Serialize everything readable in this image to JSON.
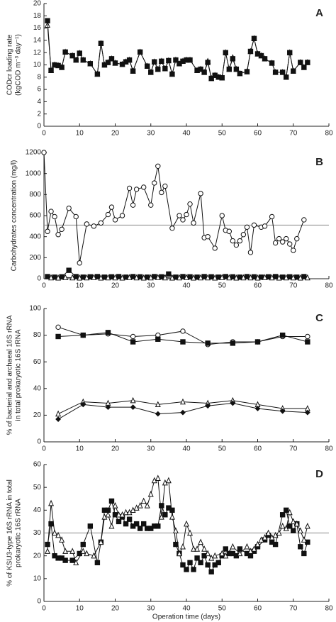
{
  "chart_data": [
    {
      "type": "line",
      "panel_label": "A",
      "ylabel": [
        "CODcr loading rate",
        "(kgCOD m⁻³ day⁻¹)"
      ],
      "xlim": [
        0,
        80
      ],
      "xticks": [
        0,
        10,
        20,
        30,
        40,
        50,
        60,
        70,
        80
      ],
      "ylim": [
        0,
        20
      ],
      "yticks": [
        0,
        2,
        4,
        6,
        8,
        10,
        12,
        14,
        16,
        18,
        20
      ],
      "series": [
        {
          "color": "#111",
          "marker": "triangle",
          "filled": false,
          "x": [
            1,
            2,
            3,
            4,
            5,
            6,
            8,
            9,
            10,
            11,
            13,
            15,
            16,
            17,
            18,
            19,
            20,
            22,
            23,
            24,
            25,
            27,
            29,
            30,
            31,
            32,
            33,
            34,
            35,
            36,
            37,
            38,
            39,
            40,
            41,
            43,
            44,
            45,
            46,
            47,
            48,
            49,
            50,
            51,
            52,
            53,
            54,
            55,
            57,
            58,
            59,
            60,
            61,
            62,
            64,
            65,
            67,
            68,
            69,
            70,
            72,
            73,
            74
          ],
          "values": [
            16.5,
            9.1,
            10,
            9.9,
            9.6,
            12.1,
            11.5,
            10.8,
            11.9,
            10.8,
            10.2,
            8.5,
            13.5,
            10,
            10.4,
            11,
            10.3,
            10.1,
            10.5,
            10.8,
            9,
            12.1,
            9.8,
            8.8,
            10.5,
            9.3,
            10.6,
            9.4,
            10.7,
            8.5,
            10.8,
            10.2,
            10.6,
            10.8,
            10.8,
            9.1,
            9.3,
            8.8,
            10.6,
            7.8,
            8.3,
            8,
            7.9,
            12,
            9.3,
            11.2,
            9.3,
            8.6,
            8.9,
            12.2,
            14.3,
            11.8,
            11.5,
            11,
            10.3,
            8.8,
            8.8,
            8,
            12,
            9,
            10.4,
            9.6,
            10.4
          ]
        },
        {
          "color": "#111",
          "marker": "square",
          "filled": true,
          "x": [
            1,
            2,
            3,
            4,
            5,
            6,
            8,
            9,
            10,
            11,
            13,
            15,
            16,
            17,
            18,
            19,
            20,
            22,
            23,
            24,
            25,
            27,
            29,
            30,
            31,
            32,
            33,
            34,
            35,
            36,
            37,
            38,
            39,
            40,
            41,
            43,
            44,
            45,
            46,
            47,
            48,
            49,
            50,
            51,
            52,
            53,
            54,
            55,
            57,
            58,
            59,
            60,
            61,
            62,
            64,
            65,
            67,
            68,
            69,
            70,
            72,
            73,
            74
          ],
          "values": [
            17.2,
            9.1,
            10,
            9.9,
            9.6,
            12.1,
            11.5,
            10.8,
            11.9,
            10.8,
            10.2,
            8.5,
            13.5,
            10,
            10.4,
            11,
            10.3,
            10.1,
            10.5,
            10.8,
            9,
            12.1,
            9.8,
            8.8,
            10.5,
            9.3,
            10.6,
            9.4,
            10.7,
            8.5,
            10.8,
            10.2,
            10.6,
            10.8,
            10.8,
            9.1,
            9.3,
            8.8,
            10.4,
            7.8,
            8.3,
            8,
            7.9,
            12,
            9.3,
            11,
            9.3,
            8.6,
            8.9,
            12.2,
            14.3,
            11.8,
            11.5,
            11,
            10.3,
            8.8,
            8.8,
            8,
            12,
            9,
            10.4,
            9.6,
            10.4
          ]
        }
      ]
    },
    {
      "type": "line",
      "panel_label": "B",
      "ylabel": [
        "Carbohydrates concentration (mg/l)"
      ],
      "xlim": [
        0,
        80
      ],
      "xticks": [
        0,
        10,
        20,
        30,
        40,
        50,
        60,
        70,
        80
      ],
      "ylim": [
        0,
        1200
      ],
      "yticks": [
        0,
        200,
        400,
        600,
        800,
        1000,
        1200
      ],
      "hline": 510,
      "series": [
        {
          "color": "#111",
          "marker": "circle",
          "filled": false,
          "x": [
            0,
            1,
            2,
            3,
            4,
            5,
            7,
            9,
            10,
            12,
            14,
            16,
            18,
            19,
            20,
            22,
            24,
            25,
            26,
            28,
            30,
            31,
            32,
            33,
            34,
            36,
            38,
            39,
            40,
            41,
            42,
            44,
            45,
            46,
            48,
            50,
            51,
            52,
            53,
            54,
            55,
            56,
            57,
            58,
            59,
            61,
            62,
            64,
            65,
            66,
            67,
            68,
            69,
            70,
            71,
            73
          ],
          "values": [
            1200,
            450,
            640,
            590,
            420,
            470,
            670,
            590,
            150,
            520,
            500,
            530,
            610,
            680,
            560,
            600,
            860,
            700,
            850,
            870,
            700,
            910,
            1070,
            820,
            880,
            480,
            600,
            560,
            610,
            710,
            530,
            810,
            390,
            400,
            290,
            600,
            460,
            450,
            360,
            320,
            360,
            420,
            490,
            250,
            510,
            490,
            500,
            590,
            340,
            380,
            350,
            380,
            330,
            270,
            380,
            560
          ]
        },
        {
          "color": "#111",
          "marker": "square",
          "filled": true,
          "x": [
            1,
            3,
            5,
            7,
            9,
            11,
            13,
            15,
            17,
            19,
            21,
            23,
            25,
            27,
            29,
            31,
            33,
            35,
            37,
            39,
            41,
            43,
            45,
            47,
            49,
            51,
            53,
            55,
            57,
            59,
            61,
            63,
            65,
            67,
            69,
            71,
            73
          ],
          "values": [
            20,
            15,
            18,
            80,
            20,
            15,
            18,
            20,
            15,
            18,
            20,
            15,
            20,
            18,
            15,
            20,
            18,
            45,
            15,
            20,
            18,
            15,
            20,
            18,
            15,
            20,
            18,
            15,
            20,
            18,
            15,
            18,
            20,
            15,
            18,
            15,
            20
          ]
        },
        {
          "color": "#111",
          "marker": "triangle",
          "filled": false,
          "x": [
            2,
            4,
            6,
            8,
            10,
            12,
            14,
            16,
            18,
            20,
            22,
            24,
            26,
            28,
            30,
            32,
            34,
            36,
            38,
            40,
            42,
            44,
            46,
            48,
            50,
            52,
            54,
            56,
            58,
            60,
            62,
            64,
            66,
            68,
            70,
            72,
            74
          ],
          "values": [
            10,
            8,
            12,
            10,
            8,
            10,
            12,
            8,
            10,
            10,
            8,
            12,
            10,
            8,
            10,
            12,
            10,
            8,
            10,
            12,
            8,
            10,
            10,
            8,
            12,
            10,
            8,
            10,
            10,
            8,
            12,
            10,
            8,
            10,
            10,
            8,
            10
          ]
        }
      ]
    },
    {
      "type": "line",
      "panel_label": "C",
      "ylabel": [
        "% of bacterial and archaeal 16S rRNA",
        "in total prokaryotic 16S rRNA"
      ],
      "xlim": [
        0,
        80
      ],
      "xticks": [
        0,
        10,
        20,
        30,
        40,
        50,
        60,
        70,
        80
      ],
      "ylim": [
        0,
        100
      ],
      "yticks": [
        0,
        20,
        40,
        60,
        80,
        100
      ],
      "series": [
        {
          "color": "#111",
          "marker": "circle",
          "filled": false,
          "x": [
            4,
            11,
            18,
            25,
            32,
            39,
            46,
            53,
            60,
            67,
            74
          ],
          "values": [
            86,
            80,
            81,
            79,
            80,
            83,
            73,
            75,
            75,
            79,
            79
          ]
        },
        {
          "color": "#111",
          "marker": "square",
          "filled": true,
          "x": [
            4,
            11,
            18,
            25,
            32,
            39,
            46,
            53,
            60,
            67,
            74
          ],
          "values": [
            79,
            80,
            82,
            75,
            77,
            75,
            74,
            74,
            75,
            80,
            75
          ]
        },
        {
          "color": "#111",
          "marker": "triangle",
          "filled": false,
          "x": [
            4,
            11,
            18,
            25,
            32,
            39,
            46,
            53,
            60,
            67,
            74
          ],
          "values": [
            21,
            30,
            29,
            31,
            28,
            30,
            29,
            31,
            28,
            25,
            25
          ]
        },
        {
          "color": "#111",
          "marker": "diamond",
          "filled": true,
          "x": [
            4,
            11,
            18,
            25,
            32,
            39,
            46,
            53,
            60,
            67,
            74
          ],
          "values": [
            17,
            28,
            26,
            26,
            21,
            22,
            27,
            29,
            25,
            23,
            22
          ]
        }
      ]
    },
    {
      "type": "line",
      "panel_label": "D",
      "ylabel": [
        "% of KSU3-type 16S rRNA in total",
        "prokaryotic 16S rRNA"
      ],
      "xlabel": "Operation time (days)",
      "xlim": [
        0,
        80
      ],
      "xticks": [
        0,
        10,
        20,
        30,
        40,
        50,
        60,
        70,
        80
      ],
      "ylim": [
        0,
        60
      ],
      "yticks": [
        0,
        10,
        20,
        30,
        40,
        50,
        60
      ],
      "hline": 30,
      "series": [
        {
          "color": "#111",
          "marker": "square",
          "filled": true,
          "x": [
            1,
            2,
            3,
            4,
            5,
            6,
            8,
            10,
            11,
            13,
            15,
            16,
            17,
            18,
            19,
            20,
            21,
            22,
            23,
            24,
            25,
            26,
            27,
            28,
            29,
            30,
            31,
            32,
            33,
            34,
            35,
            36,
            37,
            38,
            39,
            40,
            41,
            42,
            43,
            44,
            45,
            46,
            47,
            48,
            49,
            50,
            51,
            52,
            53,
            54,
            55,
            57,
            58,
            59,
            60,
            62,
            63,
            64,
            65,
            67,
            68,
            69,
            70,
            71,
            72,
            73,
            74
          ],
          "values": [
            25,
            34,
            20,
            19,
            19,
            18,
            18,
            21,
            25,
            33,
            17,
            26,
            40,
            40,
            44,
            38,
            35,
            37,
            34,
            36,
            33,
            34,
            32,
            34,
            32,
            32,
            33,
            33,
            42,
            38,
            41,
            40,
            25,
            21,
            16,
            14,
            17,
            14,
            19,
            17,
            20,
            16,
            13,
            16,
            17,
            20,
            23,
            21,
            21,
            20,
            23,
            21,
            20,
            22,
            24,
            27,
            29,
            26,
            25,
            38,
            40,
            33,
            31,
            34,
            24,
            21,
            26
          ]
        },
        {
          "color": "#111",
          "marker": "triangle",
          "filled": false,
          "x": [
            1,
            2,
            3,
            4,
            5,
            6,
            8,
            9,
            11,
            12,
            14,
            16,
            17,
            18,
            19,
            20,
            21,
            22,
            23,
            24,
            25,
            26,
            27,
            28,
            29,
            30,
            31,
            32,
            33,
            34,
            35,
            36,
            37,
            38,
            39,
            40,
            41,
            42,
            43,
            44,
            45,
            46,
            47,
            48,
            50,
            51,
            53,
            55,
            57,
            58,
            59,
            60,
            61,
            62,
            63,
            64,
            65,
            66,
            67,
            68,
            69,
            70,
            71,
            72,
            73,
            74
          ],
          "values": [
            22,
            43,
            30,
            29,
            27,
            22,
            22,
            17,
            22,
            21,
            20,
            26,
            37,
            38,
            33,
            42,
            38,
            38,
            39,
            39,
            40,
            41,
            42,
            44,
            42,
            47,
            53,
            54,
            37,
            52,
            53,
            37,
            31,
            21,
            24,
            34,
            30,
            23,
            23,
            26,
            23,
            21,
            19,
            20,
            21,
            20,
            24,
            21,
            24,
            22,
            23,
            25,
            27,
            28,
            30,
            28,
            29,
            30,
            33,
            32,
            39,
            35,
            34,
            31,
            27,
            33
          ]
        }
      ]
    }
  ]
}
